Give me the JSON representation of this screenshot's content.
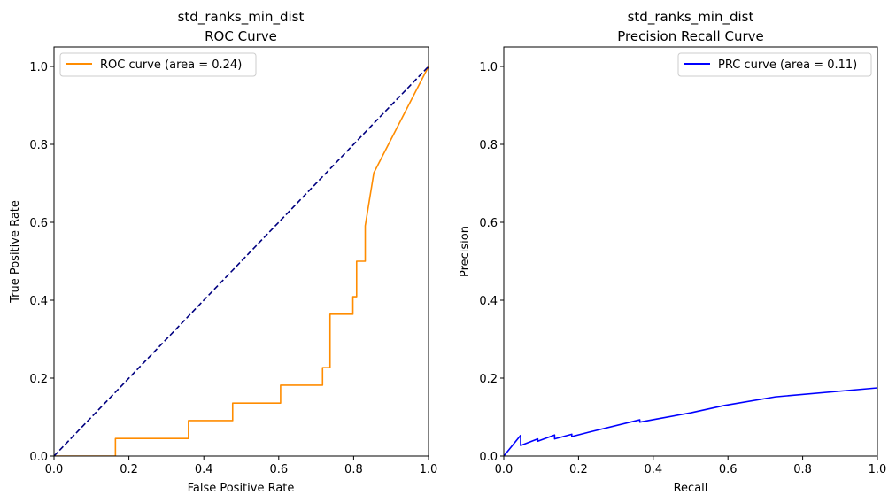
{
  "chart_data": [
    {
      "type": "line",
      "title": "std_ranks_min_dist",
      "subtitle": "ROC Curve",
      "xlabel": "False Positive Rate",
      "ylabel": "True Positive Rate",
      "xlim": [
        0.0,
        1.0
      ],
      "ylim": [
        0.0,
        1.05
      ],
      "xticks": [
        "0.0",
        "0.2",
        "0.4",
        "0.6",
        "0.8",
        "1.0"
      ],
      "yticks": [
        "0.0",
        "0.2",
        "0.4",
        "0.6",
        "0.8",
        "1.0"
      ],
      "legend_position": "top-left",
      "series": [
        {
          "name": "ROC curve (area = 0.24)",
          "color": "#ff8c00",
          "style": "solid",
          "x": [
            0.0,
            0.164,
            0.164,
            0.359,
            0.359,
            0.477,
            0.477,
            0.605,
            0.605,
            0.717,
            0.717,
            0.737,
            0.737,
            0.798,
            0.798,
            0.808,
            0.808,
            0.831,
            0.831,
            0.854,
            1.0
          ],
          "y": [
            0.0,
            0.0,
            0.045,
            0.045,
            0.091,
            0.091,
            0.136,
            0.136,
            0.182,
            0.182,
            0.227,
            0.227,
            0.364,
            0.364,
            0.409,
            0.409,
            0.5,
            0.5,
            0.591,
            0.727,
            1.0
          ]
        },
        {
          "name": "",
          "color": "#000080",
          "style": "dashed",
          "x": [
            0.0,
            1.0
          ],
          "y": [
            0.0,
            1.0
          ]
        }
      ]
    },
    {
      "type": "line",
      "title": "std_ranks_min_dist",
      "subtitle": "Precision Recall Curve",
      "xlabel": "Recall",
      "ylabel": "Precision",
      "xlim": [
        0.0,
        1.0
      ],
      "ylim": [
        0.0,
        1.05
      ],
      "xticks": [
        "0.0",
        "0.2",
        "0.4",
        "0.6",
        "0.8",
        "1.0"
      ],
      "yticks": [
        "0.0",
        "0.2",
        "0.4",
        "0.6",
        "0.8",
        "1.0"
      ],
      "legend_position": "top-right",
      "series": [
        {
          "name": "PRC curve (area = 0.11)",
          "color": "#0000ff",
          "style": "solid",
          "x": [
            0.0,
            0.045,
            0.045,
            0.091,
            0.091,
            0.136,
            0.136,
            0.182,
            0.182,
            0.227,
            0.364,
            0.364,
            0.409,
            0.5,
            0.591,
            0.727,
            1.0
          ],
          "y": [
            0.0,
            0.053,
            0.027,
            0.044,
            0.038,
            0.054,
            0.044,
            0.056,
            0.05,
            0.061,
            0.093,
            0.087,
            0.095,
            0.111,
            0.13,
            0.152,
            0.175
          ]
        }
      ]
    }
  ]
}
